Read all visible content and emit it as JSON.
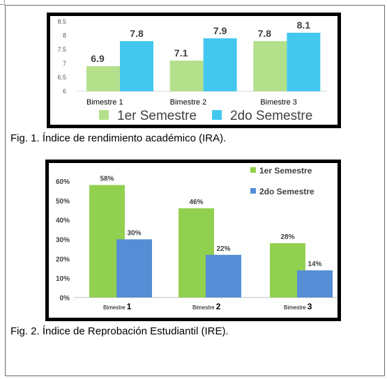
{
  "chart_data": [
    {
      "type": "bar",
      "categories": [
        "Bimestre 1",
        "Bimestre 2",
        "Bimestre 3"
      ],
      "series": [
        {
          "name": "1er Semestre",
          "values": [
            6.9,
            7.1,
            7.8
          ],
          "color": "#b4e08c"
        },
        {
          "name": "2do Semestre",
          "values": [
            7.8,
            7.9,
            8.1
          ],
          "color": "#42c8ef"
        }
      ],
      "data_labels": [
        [
          "6.9",
          "7.1",
          "7.8"
        ],
        [
          "7.8",
          "7.9",
          "8.1"
        ]
      ],
      "yticks": [
        "6",
        "6.5",
        "7",
        "7.5",
        "8",
        "8.5"
      ],
      "ylim": [
        6,
        8.5
      ],
      "legend_position": "bottom",
      "grid": false
    },
    {
      "type": "bar",
      "categories": [
        "Bimestre 1",
        "Bimestre 2",
        "Bimestre 3"
      ],
      "category_labels": [
        {
          "prefix": "Bimestre ",
          "num": "1"
        },
        {
          "prefix": "Bimestre ",
          "num": "2"
        },
        {
          "prefix": "Bimestre ",
          "num": "3"
        }
      ],
      "series": [
        {
          "name": "1er Semestre",
          "values": [
            58,
            46,
            28
          ],
          "color": "#92d050"
        },
        {
          "name": "2do Semestre",
          "values": [
            30,
            22,
            14
          ],
          "color": "#558ed5"
        }
      ],
      "data_labels": [
        [
          "58%",
          "46%",
          "28%"
        ],
        [
          "30%",
          "22%",
          "14%"
        ]
      ],
      "yticks": [
        "0%",
        "10%",
        "20%",
        "30%",
        "40%",
        "50%",
        "60%"
      ],
      "ylim": [
        0,
        60
      ],
      "legend_position": "top-right",
      "grid": false
    }
  ],
  "captions": {
    "fig1": "Fig. 1.  Índice de rendimiento académico (IRA).",
    "fig2": "Fig. 2.  Índice de Reprobación Estudiantil (IRE)."
  }
}
